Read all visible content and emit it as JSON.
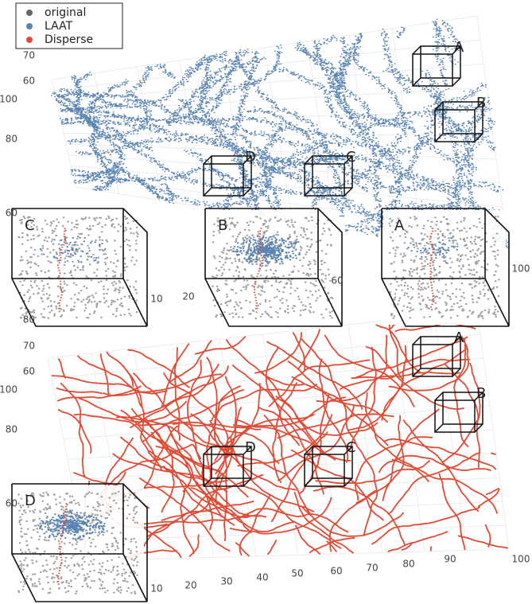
{
  "legend": [
    {
      "label": "original",
      "color": "#666666"
    },
    {
      "label": "LAAT",
      "color": "#5b84b1"
    },
    {
      "label": "Disperse",
      "color": "#e04b35"
    }
  ],
  "top_panel": {
    "z_ticks": [
      60,
      70,
      80
    ],
    "y_ticks": [
      60,
      80,
      100
    ],
    "x_ticks": [
      10,
      20,
      60,
      100
    ],
    "boxes": [
      "A",
      "B",
      "C",
      "D"
    ],
    "insets": [
      "C",
      "B",
      "A"
    ]
  },
  "bottom_panel": {
    "z_ticks": [
      60,
      70,
      80
    ],
    "y_ticks": [
      60,
      80,
      100
    ],
    "x_ticks": [
      10,
      20,
      30,
      40,
      50,
      60,
      70,
      80,
      90,
      100
    ],
    "boxes": [
      "A",
      "B",
      "C",
      "D"
    ],
    "insets": [
      "D"
    ]
  }
}
